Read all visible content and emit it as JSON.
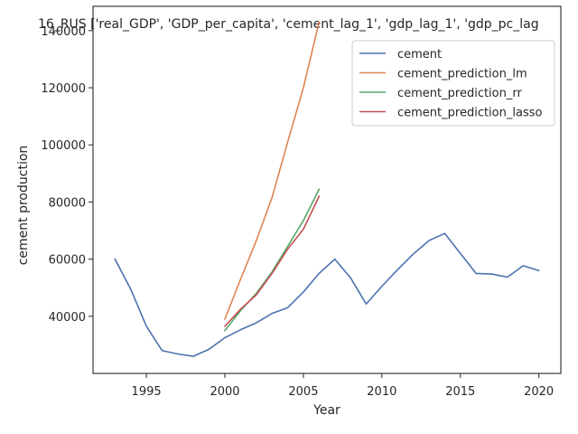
{
  "chart_data": {
    "type": "line",
    "title": "16_RUS ['real_GDP', 'GDP_per_capita', 'cement_lag_1', 'gdp_lag_1', 'gdp_pc_lag",
    "xlabel": "Year",
    "ylabel": "cement production",
    "xlim": [
      1991.6,
      2021.4
    ],
    "ylim": [
      20000,
      148500
    ],
    "xticks": [
      1995,
      2000,
      2005,
      2010,
      2015,
      2020
    ],
    "yticks": [
      40000,
      60000,
      80000,
      100000,
      120000,
      140000
    ],
    "grid": false,
    "legend_position": "upper right",
    "series": [
      {
        "name": "cement",
        "color": "#4c72b0",
        "x": [
          1993,
          1994,
          1995,
          1996,
          1997,
          1998,
          1999,
          2000,
          2001,
          2002,
          2003,
          2004,
          2005,
          2006,
          2007,
          2008,
          2009,
          2010,
          2011,
          2012,
          2013,
          2014,
          2015,
          2016,
          2017,
          2018,
          2019,
          2020
        ],
        "y": [
          60000,
          49500,
          36500,
          28000,
          26800,
          26000,
          28500,
          32500,
          35300,
          37700,
          41000,
          43000,
          48500,
          55000,
          60000,
          53500,
          44300,
          50500,
          56300,
          61800,
          66500,
          69000,
          62000,
          55000,
          54800,
          53700,
          57700,
          56000
        ]
      },
      {
        "name": "cement_prediction_lm",
        "color": "#dd8452",
        "x": [
          2000,
          2001,
          2002,
          2003,
          2004,
          2005,
          2006
        ],
        "y": [
          39000,
          53000,
          66500,
          81500,
          101000,
          120000,
          143000
        ]
      },
      {
        "name": "cement_prediction_rr",
        "color": "#55a868",
        "x": [
          2000,
          2001,
          2002,
          2003,
          2004,
          2005,
          2006
        ],
        "y": [
          35000,
          42000,
          48000,
          55500,
          64500,
          73500,
          84500
        ]
      },
      {
        "name": "cement_prediction_lasso",
        "color": "#c44e52",
        "x": [
          2000,
          2001,
          2002,
          2003,
          2004,
          2005,
          2006
        ],
        "y": [
          36500,
          42500,
          47500,
          55000,
          63500,
          70500,
          82000
        ]
      }
    ]
  }
}
